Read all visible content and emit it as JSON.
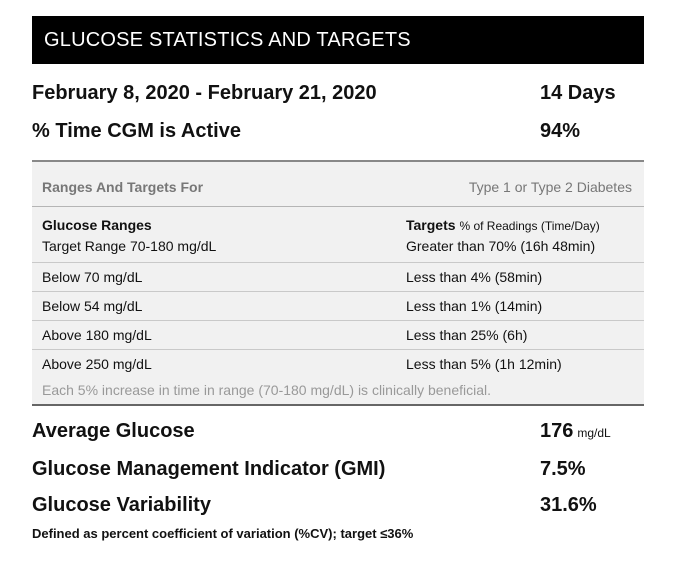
{
  "header": {
    "title": "GLUCOSE STATISTICS AND TARGETS"
  },
  "period": {
    "label": "February 8, 2020 - February 21, 2020",
    "value": "14 Days"
  },
  "cgm_active": {
    "label": "% Time CGM is Active",
    "value": "94%"
  },
  "ranges": {
    "heading_left": "Ranges And Targets For",
    "heading_right": "Type 1 or Type 2 Diabetes",
    "col1_title": "Glucose Ranges",
    "col2_title": "Targets",
    "col2_subtitle": "% of Readings (Time/Day)",
    "rows": [
      {
        "range": "Target Range 70-180 mg/dL",
        "target": "Greater than 70% (16h 48min)"
      },
      {
        "range": "Below 70 mg/dL",
        "target": "Less than 4% (58min)"
      },
      {
        "range": "Below 54 mg/dL",
        "target": "Less than 1% (14min)"
      },
      {
        "range": "Above 180 mg/dL",
        "target": "Less than 25% (6h)"
      },
      {
        "range": "Above 250 mg/dL",
        "target": "Less than 5% (1h 12min)"
      }
    ],
    "note": "Each 5% increase in time in range (70-180 mg/dL) is clinically beneficial."
  },
  "stats": {
    "average_glucose": {
      "label": "Average Glucose",
      "value": "176",
      "unit": "mg/dL"
    },
    "gmi": {
      "label": "Glucose Management Indicator (GMI)",
      "value": "7.5%"
    },
    "variability": {
      "label": "Glucose Variability",
      "value": "31.6%"
    }
  },
  "footnote": "Defined as percent coefficient of variation (%CV); target ≤36%"
}
